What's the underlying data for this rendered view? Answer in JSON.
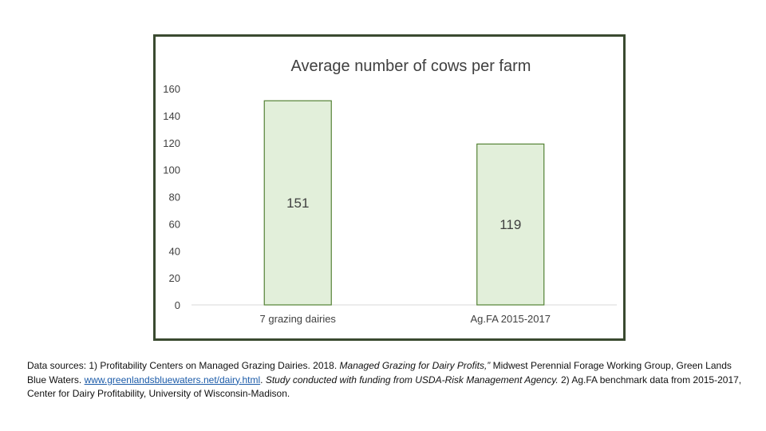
{
  "chart_data": {
    "type": "bar",
    "title": "Average number of cows per farm",
    "categories": [
      "7 grazing dairies",
      "Ag.FA 2015-2017"
    ],
    "values": [
      151,
      119
    ],
    "data_labels": [
      "151",
      "119"
    ],
    "ylim": [
      0,
      160
    ],
    "yticks": [
      0,
      20,
      40,
      60,
      80,
      100,
      120,
      140,
      160
    ],
    "xlabel": "",
    "ylabel": "",
    "grid": false,
    "colors": {
      "bar_fill": "#e2efda",
      "bar_stroke": "#548235",
      "axis": "#d9d9d9",
      "frame": "#3a4a30"
    }
  },
  "sources": {
    "part1": "Data sources: 1) Profitability Centers on Managed Grazing Dairies. 2018. ",
    "part2": "Managed Grazing for Dairy Profits,” ",
    "part3": "Midwest Perennial Forage Working Group, Green Lands Blue Waters. ",
    "link": "www.greenlandsbluewaters.net/dairy.html",
    "part4": ". ",
    "part5": "Study conducted with funding from USDA-Risk Management Agency.",
    "part6": " 2) Ag.FA benchmark data from 2015-2017, Center for Dairy Profitability, University of Wisconsin-Madison."
  }
}
